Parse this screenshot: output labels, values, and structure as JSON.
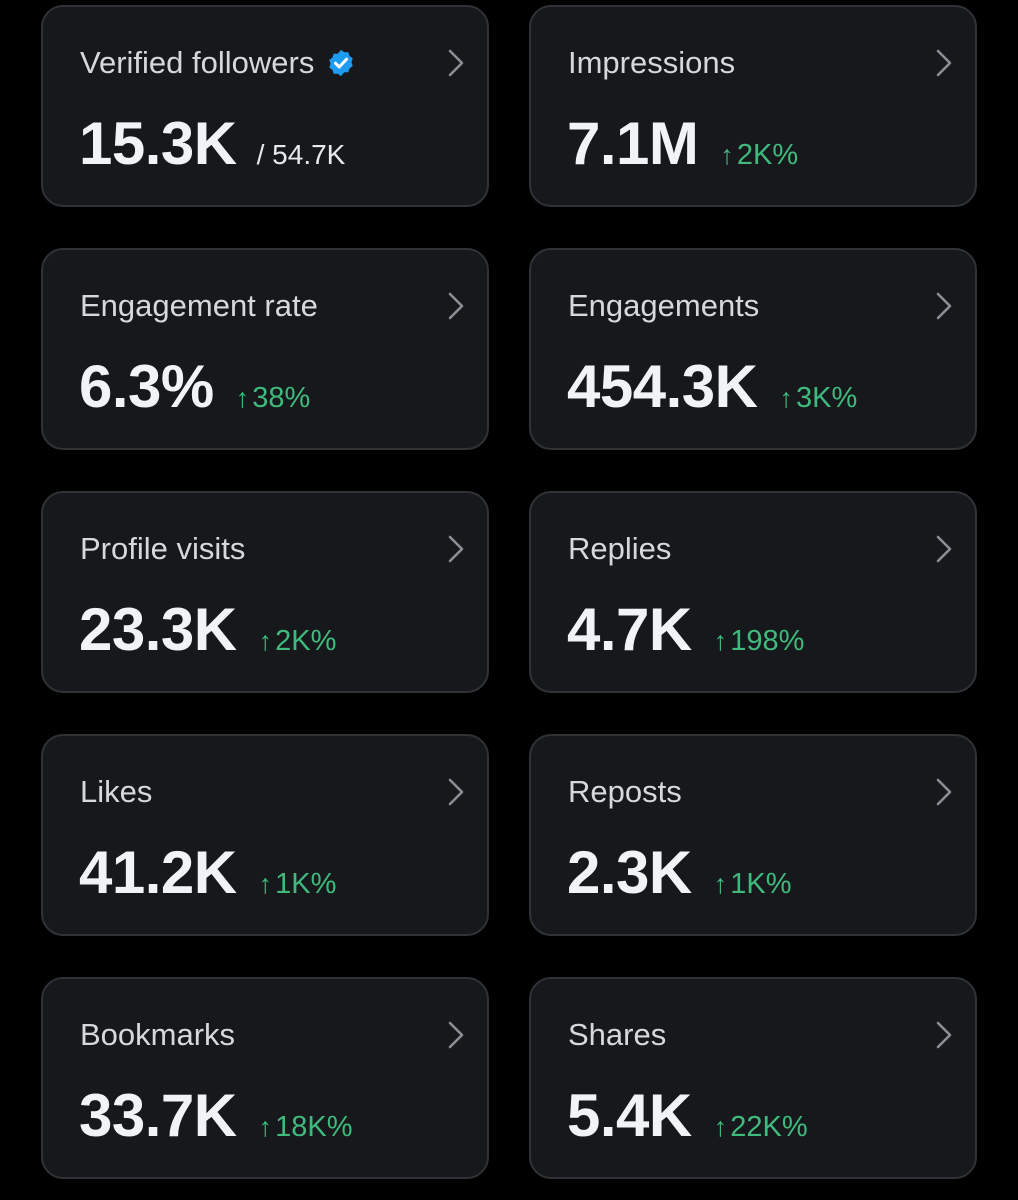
{
  "colors": {
    "background": "#000000",
    "card": "#16181c",
    "border": "#2f3336",
    "positive": "#3fba7c",
    "verified": "#1d9bf0"
  },
  "icons": {
    "verified": "verified-badge-icon",
    "chevron": "chevron-right-icon",
    "arrow": "arrow-up-icon"
  },
  "arrow_glyph": "↑",
  "cards": [
    {
      "title": "Verified followers",
      "value": "15.3K",
      "total": "/ 54.7K",
      "change": ""
    },
    {
      "title": "Impressions",
      "value": "7.1M",
      "total": "",
      "change": "2K%"
    },
    {
      "title": "Engagement rate",
      "value": "6.3%",
      "total": "",
      "change": "38%"
    },
    {
      "title": "Engagements",
      "value": "454.3K",
      "total": "",
      "change": "3K%"
    },
    {
      "title": "Profile visits",
      "value": "23.3K",
      "total": "",
      "change": "2K%"
    },
    {
      "title": "Replies",
      "value": "4.7K",
      "total": "",
      "change": "198%"
    },
    {
      "title": "Likes",
      "value": "41.2K",
      "total": "",
      "change": "1K%"
    },
    {
      "title": "Reposts",
      "value": "2.3K",
      "total": "",
      "change": "1K%"
    },
    {
      "title": "Bookmarks",
      "value": "33.7K",
      "total": "",
      "change": "18K%"
    },
    {
      "title": "Shares",
      "value": "5.4K",
      "total": "",
      "change": "22K%"
    }
  ]
}
